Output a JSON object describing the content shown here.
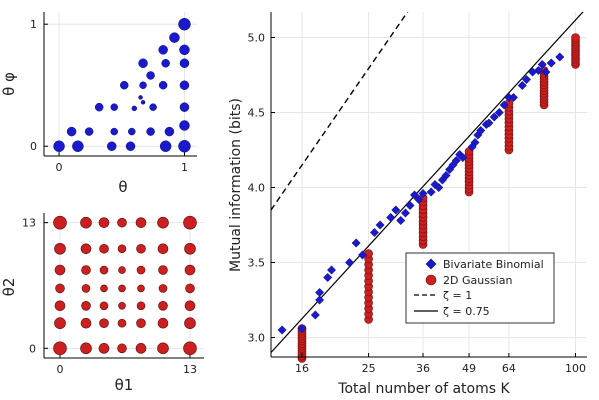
{
  "chart_data": [
    {
      "type": "scatter",
      "panel": "top-left",
      "xlabel": "θ",
      "ylabel": "θ φ",
      "xlim": [
        -0.12,
        1.1
      ],
      "ylim": [
        -0.08,
        1.1
      ],
      "xticks": [
        0,
        1
      ],
      "xtick_labels": [
        "0",
        "1"
      ],
      "yticks": [
        0,
        1
      ],
      "ytick_labels": [
        "0",
        "1"
      ],
      "grid": true,
      "marker": "circle",
      "color": "#1a1acc",
      "points": [
        {
          "x": 0.0,
          "y": 0.0,
          "size": 5.5
        },
        {
          "x": 0.15,
          "y": 0.0,
          "size": 5.5
        },
        {
          "x": 0.42,
          "y": 0.0,
          "size": 4.5
        },
        {
          "x": 0.57,
          "y": 0.0,
          "size": 4.5
        },
        {
          "x": 0.85,
          "y": 0.0,
          "size": 5.5
        },
        {
          "x": 1.0,
          "y": 0.0,
          "size": 6.0
        },
        {
          "x": 0.1,
          "y": 0.12,
          "size": 4.5
        },
        {
          "x": 0.24,
          "y": 0.12,
          "size": 4.0
        },
        {
          "x": 0.44,
          "y": 0.12,
          "size": 3.5
        },
        {
          "x": 0.58,
          "y": 0.12,
          "size": 3.5
        },
        {
          "x": 0.73,
          "y": 0.12,
          "size": 4.0
        },
        {
          "x": 0.88,
          "y": 0.12,
          "size": 4.5
        },
        {
          "x": 1.0,
          "y": 0.17,
          "size": 5.0
        },
        {
          "x": 0.32,
          "y": 0.32,
          "size": 4.0
        },
        {
          "x": 0.44,
          "y": 0.32,
          "size": 3.5
        },
        {
          "x": 0.6,
          "y": 0.31,
          "size": 2.5
        },
        {
          "x": 0.67,
          "y": 0.36,
          "size": 2.0
        },
        {
          "x": 0.75,
          "y": 0.32,
          "size": 3.5
        },
        {
          "x": 1.0,
          "y": 0.32,
          "size": 4.5
        },
        {
          "x": 0.65,
          "y": 0.4,
          "size": 2.0
        },
        {
          "x": 0.52,
          "y": 0.5,
          "size": 4.0
        },
        {
          "x": 0.67,
          "y": 0.5,
          "size": 3.5
        },
        {
          "x": 0.83,
          "y": 0.5,
          "size": 4.0
        },
        {
          "x": 1.0,
          "y": 0.5,
          "size": 4.5
        },
        {
          "x": 0.73,
          "y": 0.58,
          "size": 4.0
        },
        {
          "x": 0.67,
          "y": 0.68,
          "size": 4.5
        },
        {
          "x": 0.85,
          "y": 0.68,
          "size": 4.0
        },
        {
          "x": 1.0,
          "y": 0.68,
          "size": 4.5
        },
        {
          "x": 0.83,
          "y": 0.79,
          "size": 4.5
        },
        {
          "x": 1.0,
          "y": 0.79,
          "size": 5.0
        },
        {
          "x": 0.92,
          "y": 0.89,
          "size": 5.0
        },
        {
          "x": 1.0,
          "y": 1.0,
          "size": 6.0
        }
      ]
    },
    {
      "type": "scatter",
      "panel": "bottom-left",
      "xlabel": "θ1",
      "ylabel": "θ2",
      "xlim": [
        -1.6,
        14.4
      ],
      "ylim": [
        -1.0,
        14.0
      ],
      "xticks": [
        0,
        13
      ],
      "xtick_labels": [
        "0",
        "13"
      ],
      "yticks": [
        0,
        13
      ],
      "ytick_labels": [
        "0",
        "13"
      ],
      "grid": true,
      "marker": "circle",
      "color": "#cc1f1f",
      "grid_values": [
        0,
        2.6,
        4.4,
        6.2,
        8.1,
        10.3,
        13
      ],
      "sizes": [
        [
          6.5,
          5.5,
          5.0,
          4.5,
          5.0,
          5.5,
          6.5
        ],
        [
          5.5,
          5.0,
          4.5,
          4.0,
          4.5,
          5.0,
          5.5
        ],
        [
          5.0,
          4.5,
          4.0,
          3.5,
          4.0,
          4.5,
          5.0
        ],
        [
          4.5,
          4.0,
          3.5,
          3.5,
          3.5,
          4.0,
          4.5
        ],
        [
          5.0,
          4.5,
          4.0,
          3.5,
          4.0,
          4.5,
          5.0
        ],
        [
          5.5,
          5.0,
          4.5,
          4.0,
          4.5,
          5.0,
          5.5
        ],
        [
          6.5,
          5.5,
          5.0,
          4.5,
          5.0,
          5.5,
          6.5
        ]
      ]
    },
    {
      "type": "scatter",
      "panel": "right",
      "xlabel": "Total number of atoms K",
      "ylabel": "Mutual information (bits)",
      "x_scale": "log2",
      "xlim": [
        13,
        108
      ],
      "ylim": [
        2.87,
        5.17
      ],
      "xticks": [
        16,
        25,
        36,
        49,
        64,
        100
      ],
      "xtick_labels": [
        "16",
        "25",
        "36",
        "49",
        "64",
        "100"
      ],
      "yticks": [
        3.0,
        3.5,
        4.0,
        4.5,
        5.0
      ],
      "ytick_labels": [
        "3.0",
        "3.5",
        "4.0",
        "4.5",
        "5.0"
      ],
      "grid": true,
      "legend_position": "bottom-right",
      "series": [
        {
          "name": "Bivariate Binomial",
          "marker": "diamond",
          "color": "#1a1acc",
          "points": [
            [
              14,
              3.05
            ],
            [
              16,
              3.06
            ],
            [
              17.5,
              3.15
            ],
            [
              18,
              3.25
            ],
            [
              18,
              3.3
            ],
            [
              19,
              3.4
            ],
            [
              19.5,
              3.45
            ],
            [
              22,
              3.5
            ],
            [
              23,
              3.63
            ],
            [
              24,
              3.55
            ],
            [
              26,
              3.7
            ],
            [
              27,
              3.75
            ],
            [
              29,
              3.8
            ],
            [
              30,
              3.85
            ],
            [
              31,
              3.78
            ],
            [
              32,
              3.83
            ],
            [
              33,
              3.88
            ],
            [
              34,
              3.95
            ],
            [
              35,
              3.92
            ],
            [
              36,
              3.96
            ],
            [
              38,
              3.97
            ],
            [
              39,
              4.02
            ],
            [
              40,
              4.0
            ],
            [
              41,
              4.05
            ],
            [
              42,
              4.08
            ],
            [
              43,
              4.12
            ],
            [
              44,
              4.15
            ],
            [
              45,
              4.18
            ],
            [
              46,
              4.22
            ],
            [
              47,
              4.2
            ],
            [
              50,
              4.27
            ],
            [
              51,
              4.3
            ],
            [
              52,
              4.35
            ],
            [
              53,
              4.38
            ],
            [
              55,
              4.42
            ],
            [
              56,
              4.43
            ],
            [
              58,
              4.47
            ],
            [
              60,
              4.5
            ],
            [
              62,
              4.55
            ],
            [
              64,
              4.6
            ],
            [
              66,
              4.6
            ],
            [
              70,
              4.68
            ],
            [
              72,
              4.72
            ],
            [
              75,
              4.77
            ],
            [
              78,
              4.78
            ],
            [
              80,
              4.82
            ],
            [
              82,
              4.77
            ],
            [
              85,
              4.83
            ],
            [
              90,
              4.87
            ]
          ]
        },
        {
          "name": "2D Gaussian",
          "marker": "circle",
          "color": "#cc1f1f",
          "columns": [
            {
              "x": 16,
              "min": 2.86,
              "max": 3.06
            },
            {
              "x": 25,
              "min": 3.12,
              "max": 3.56
            },
            {
              "x": 36,
              "min": 3.62,
              "max": 3.93
            },
            {
              "x": 49,
              "min": 3.97,
              "max": 4.24
            },
            {
              "x": 64,
              "min": 4.25,
              "max": 4.56
            },
            {
              "x": 81,
              "min": 4.55,
              "max": 4.78
            },
            {
              "x": 100,
              "min": 4.82,
              "max": 5.0
            }
          ]
        },
        {
          "name": "ζ = 1",
          "style": "dashed",
          "color": "#000000",
          "line": [
            [
              13,
              3.85
            ],
            [
              36,
              5.32
            ]
          ]
        },
        {
          "name": "ζ = 0.75",
          "style": "solid",
          "color": "#000000",
          "line": [
            [
              13,
              2.9
            ],
            [
              108,
              5.2
            ]
          ]
        }
      ]
    }
  ]
}
